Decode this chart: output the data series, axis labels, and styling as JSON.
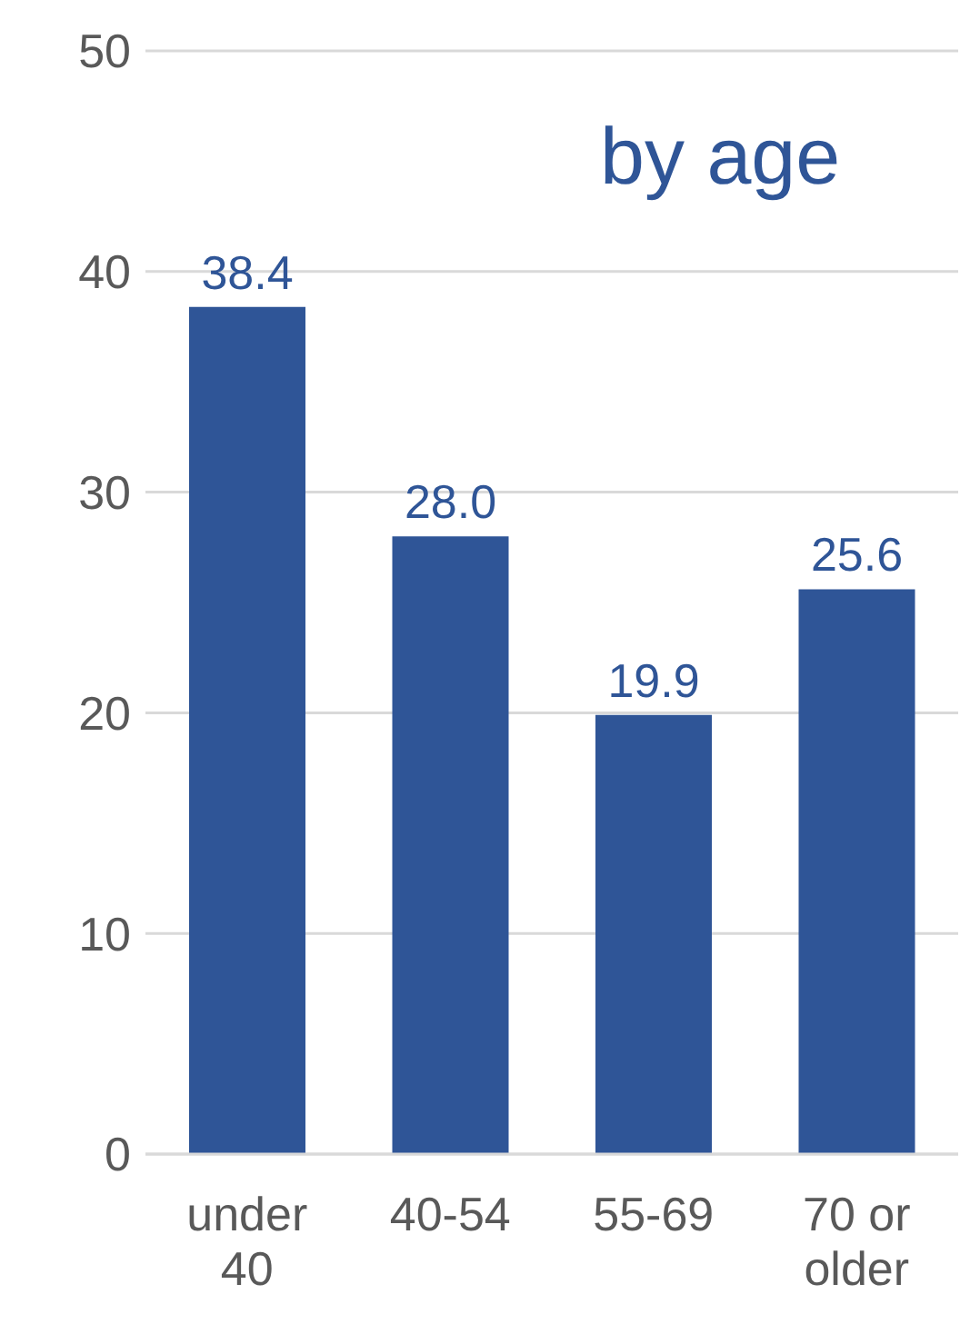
{
  "chart_data": {
    "type": "bar",
    "title": "by age",
    "categories": [
      "under 40",
      "40-54",
      "55-69",
      "70 or older"
    ],
    "values": [
      38.4,
      28.0,
      19.9,
      25.6
    ],
    "color": "#2f5597",
    "value_labels": [
      "38.4",
      "28.0",
      "19.9",
      "25.6"
    ],
    "ylim": [
      0,
      50
    ],
    "yticks": [
      0,
      10,
      20,
      30,
      40,
      50
    ],
    "grid": "y"
  }
}
